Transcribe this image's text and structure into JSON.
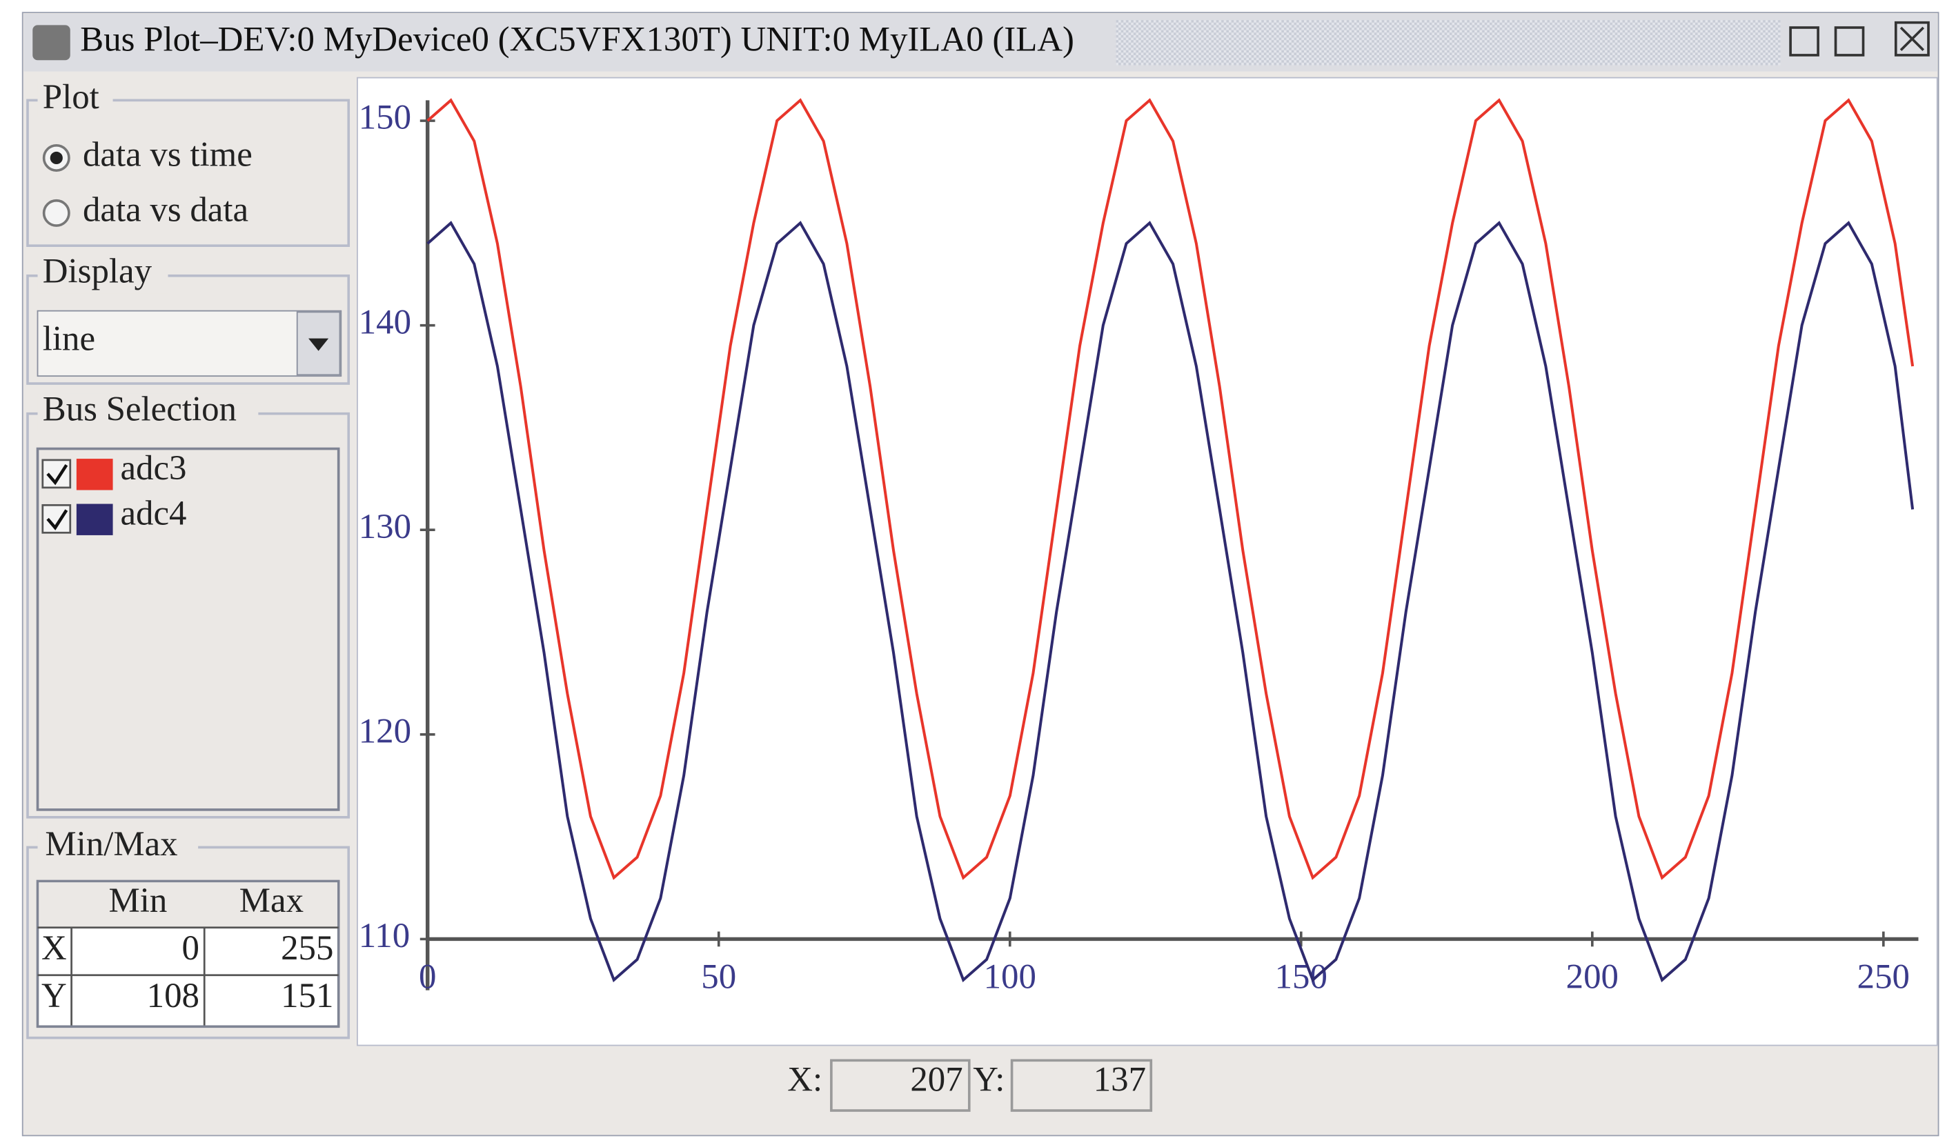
{
  "window": {
    "title": "Bus Plot–DEV:0 MyDevice0 (XC5VFX130T) UNIT:0 MyILA0 (ILA)"
  },
  "plot_group": {
    "label": "Plot",
    "options": [
      "data vs time",
      "data vs data"
    ],
    "selected": 0
  },
  "display_group": {
    "label": "Display",
    "value": "line"
  },
  "bus_selection": {
    "label": "Bus Selection",
    "checked": [
      true,
      true
    ]
  },
  "minmax": {
    "label": "Min/Max",
    "headers": [
      "Min",
      "Max"
    ],
    "rows": [
      [
        "X",
        0,
        255
      ],
      [
        "Y",
        108,
        151
      ]
    ]
  },
  "status": {
    "x_label": "X:",
    "x_value": 207,
    "y_label": "Y:",
    "y_value": 137
  },
  "chart_data": {
    "type": "line",
    "x": [
      0,
      4,
      8,
      12,
      16,
      20,
      24,
      28,
      32,
      36,
      40,
      44,
      48,
      52,
      56,
      60,
      64,
      68,
      72,
      76,
      80,
      84,
      88,
      92,
      96,
      100,
      104,
      108,
      112,
      116,
      120,
      124,
      128,
      132,
      136,
      140,
      144,
      148,
      152,
      156,
      160,
      164,
      168,
      172,
      176,
      180,
      184,
      188,
      192,
      196,
      200,
      204,
      208,
      212,
      216,
      220,
      224,
      228,
      232,
      236,
      240,
      244,
      248,
      252,
      255
    ],
    "series": [
      {
        "name": "adc3",
        "color": "#e8352a",
        "values": [
          150,
          151,
          149,
          144,
          137,
          129,
          122,
          116,
          113,
          114,
          117,
          123,
          131,
          139,
          145,
          150,
          151,
          149,
          144,
          137,
          129,
          122,
          116,
          113,
          114,
          117,
          123,
          131,
          139,
          145,
          150,
          151,
          149,
          144,
          137,
          129,
          122,
          116,
          113,
          114,
          117,
          123,
          131,
          139,
          145,
          150,
          151,
          149,
          144,
          137,
          129,
          122,
          116,
          113,
          114,
          117,
          123,
          131,
          139,
          145,
          150,
          151,
          149,
          144,
          138
        ]
      },
      {
        "name": "adc4",
        "color": "#2e2a6e",
        "values": [
          144,
          145,
          143,
          138,
          131,
          124,
          116,
          111,
          108,
          109,
          112,
          118,
          126,
          133,
          140,
          144,
          145,
          143,
          138,
          131,
          124,
          116,
          111,
          108,
          109,
          112,
          118,
          126,
          133,
          140,
          144,
          145,
          143,
          138,
          131,
          124,
          116,
          111,
          108,
          109,
          112,
          118,
          126,
          133,
          140,
          144,
          145,
          143,
          138,
          131,
          124,
          116,
          111,
          108,
          109,
          112,
          118,
          126,
          133,
          140,
          144,
          145,
          143,
          138,
          131
        ]
      }
    ],
    "xlim": [
      0,
      256
    ],
    "ylim": [
      107.5,
      151
    ],
    "xticks": [
      0,
      50,
      100,
      150,
      200,
      250
    ],
    "yticks": [
      110,
      120,
      130,
      140,
      150
    ]
  }
}
